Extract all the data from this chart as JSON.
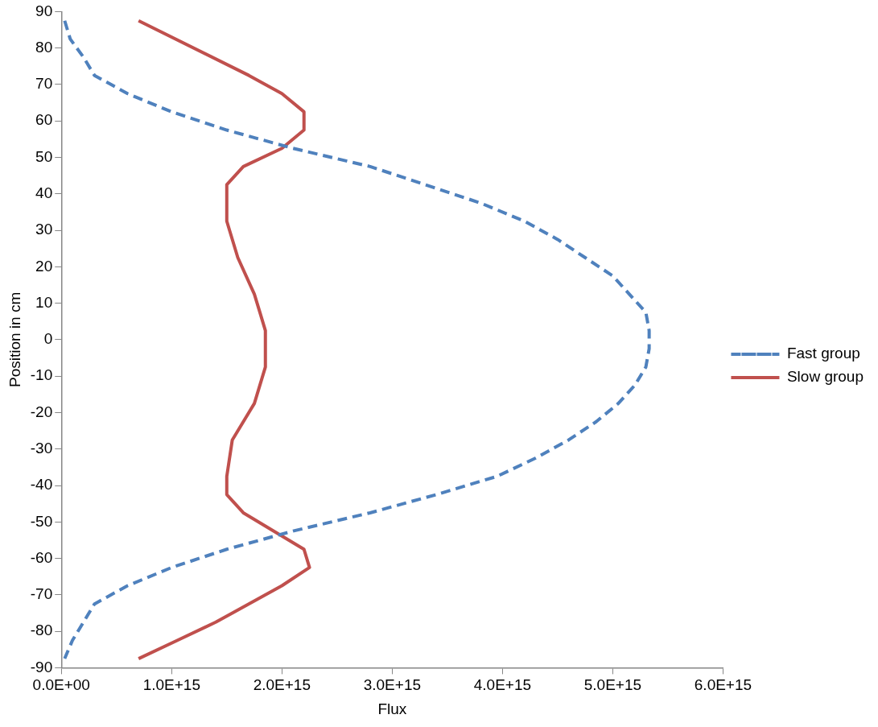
{
  "chart_data": {
    "type": "line",
    "xlabel": "Flux",
    "ylabel": "Position in cm",
    "legend": "right",
    "grid": false,
    "marker": "none",
    "xlim": [
      0,
      6000000000000000.0
    ],
    "xticks": [
      {
        "value": 0,
        "label": "0.0E+00"
      },
      {
        "value": 1000000000000000.0,
        "label": "1.0E+15"
      },
      {
        "value": 2000000000000000.0,
        "label": "2.0E+15"
      },
      {
        "value": 3000000000000000.0,
        "label": "3.0E+15"
      },
      {
        "value": 4000000000000000.0,
        "label": "4.0E+15"
      },
      {
        "value": 5000000000000000.0,
        "label": "5.0E+15"
      },
      {
        "value": 6000000000000000.0,
        "label": "6.0E+15"
      }
    ],
    "ylim": [
      -90,
      90
    ],
    "yticks": [
      -90,
      -80,
      -70,
      -60,
      -50,
      -40,
      -30,
      -20,
      -10,
      0,
      10,
      20,
      30,
      40,
      50,
      60,
      70,
      80,
      90
    ],
    "series": [
      {
        "name": "Fast group",
        "color": "#4f81bd",
        "line_style": "dashed",
        "x": [
          30000000000000.0,
          80000000000000.0,
          200000000000000.0,
          300000000000000.0,
          600000000000000.0,
          1000000000000000.0,
          1500000000000000.0,
          2100000000000000.0,
          2800000000000000.0,
          3300000000000000.0,
          3800000000000000.0,
          4200000000000000.0,
          4500000000000000.0,
          4750000000000000.0,
          5000000000000000.0,
          5150000000000000.0,
          5300000000000000.0,
          5330000000000000.0,
          5330000000000000.0,
          5300000000000000.0,
          5200000000000000.0,
          5050000000000000.0,
          4850000000000000.0,
          4600000000000000.0,
          4300000000000000.0,
          3950000000000000.0,
          3400000000000000.0,
          2800000000000000.0,
          2100000000000000.0,
          1500000000000000.0,
          1000000000000000.0,
          600000000000000.0,
          300000000000000.0,
          200000000000000.0,
          100000000000000.0,
          30000000000000.0
        ],
        "values": [
          87.5,
          82.5,
          77.5,
          72.5,
          67.5,
          62.5,
          57.5,
          52.5,
          47.5,
          42.5,
          37.5,
          32.5,
          27.5,
          22.5,
          17.5,
          12.5,
          7.5,
          2.5,
          -2.5,
          -7.5,
          -12.5,
          -17.5,
          -22.5,
          -27.5,
          -32.5,
          -37.5,
          -42.5,
          -47.5,
          -52.5,
          -57.5,
          -62.5,
          -67.5,
          -72.5,
          -77.5,
          -82.5,
          -87.5
        ]
      },
      {
        "name": "Slow group",
        "color": "#c0504d",
        "line_style": "solid",
        "x": [
          700000000000000.0,
          1700000000000000.0,
          2000000000000000.0,
          2200000000000000.0,
          2200000000000000.0,
          2000000000000000.0,
          1650000000000000.0,
          1500000000000000.0,
          1500000000000000.0,
          1600000000000000.0,
          1750000000000000.0,
          1800000000000000.0,
          1850000000000000.0,
          1850000000000000.0,
          1750000000000000.0,
          1550000000000000.0,
          1500000000000000.0,
          1500000000000000.0,
          1650000000000000.0,
          2200000000000000.0,
          2250000000000000.0,
          2000000000000000.0,
          1400000000000000.0,
          1050000000000000.0,
          700000000000000.0
        ],
        "values": [
          87.5,
          72.5,
          67.5,
          62.5,
          57.5,
          52.5,
          47.5,
          42.5,
          32.5,
          22.5,
          12.5,
          7.5,
          2.5,
          -7.5,
          -17.5,
          -27.5,
          -37.5,
          -42.5,
          -47.5,
          -57.5,
          -62.5,
          -67.5,
          -77.5,
          -82.5,
          -87.5
        ]
      }
    ]
  }
}
